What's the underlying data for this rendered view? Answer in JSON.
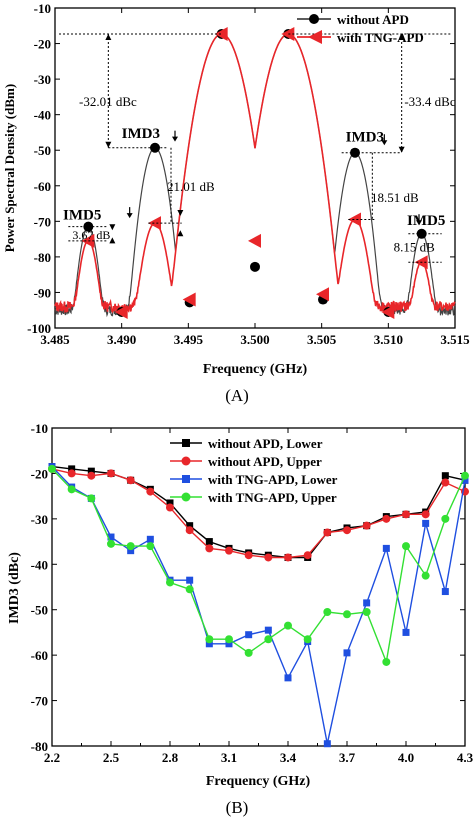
{
  "figure_a": {
    "caption": "(A)",
    "xlabel": "Frequency (GHz)",
    "ylabel": "Power Spectral Density (dBm)",
    "legend": [
      "without APD",
      "with TNG-APD"
    ],
    "annotations": {
      "imd3_left": "IMD3",
      "imd3_right": "IMD3",
      "imd5_left": "IMD5",
      "imd5_right": "IMD5",
      "dbc_left": "-32.01 dBc",
      "dbc_right": "-33.4 dBc",
      "imd3_gain_left": "21.01 dB",
      "imd3_gain_right": "18.51 dB",
      "imd5_gain_left": "3.67 dB",
      "imd5_gain_right": "8.15 dB"
    }
  },
  "figure_b": {
    "caption": "(B)",
    "xlabel": "Frequency (GHz)",
    "ylabel": "IMD3 (dBc)"
  },
  "chart_data": [
    {
      "type": "line",
      "xlabel": "Frequency (GHz)",
      "ylabel": "Power Spectral Density (dBm)",
      "xlim": [
        3.485,
        3.515
      ],
      "ylim": [
        -100,
        -10
      ],
      "x_ticks": [
        "3.485",
        "3.490",
        "3.495",
        "3.500",
        "3.505",
        "3.510",
        "3.515"
      ],
      "y_ticks": [
        "-10",
        "-20",
        "-30",
        "-40",
        "-50",
        "-60",
        "-70",
        "-80",
        "-90",
        "-100"
      ],
      "series": [
        {
          "name": "without APD",
          "color": "#444444",
          "markers": [
            [
              3.4875,
              -71.5
            ],
            [
              3.4925,
              -49.3
            ],
            [
              3.4975,
              -17.3
            ],
            [
              3.5,
              -82.8
            ],
            [
              3.5025,
              -17.3
            ],
            [
              3.5075,
              -50.7
            ],
            [
              3.5125,
              -73.5
            ],
            [
              3.49,
              -95.5
            ],
            [
              3.4951,
              -92.8
            ],
            [
              3.5051,
              -92.0
            ],
            [
              3.51,
              -95.5
            ]
          ]
        },
        {
          "name": "with TNG-APD",
          "color": "#e8262a",
          "markers": [
            [
              3.4875,
              -75.5
            ],
            [
              3.4925,
              -70.5
            ],
            [
              3.4975,
              -17.3
            ],
            [
              3.5,
              -75.5
            ],
            [
              3.5025,
              -17.3
            ],
            [
              3.5075,
              -69.5
            ],
            [
              3.5125,
              -81.5
            ],
            [
              3.49,
              -95.5
            ],
            [
              3.4951,
              -92.0
            ],
            [
              3.5051,
              -90.5
            ],
            [
              3.51,
              -95.5
            ]
          ]
        }
      ]
    },
    {
      "type": "line",
      "xlabel": "Frequency (GHz)",
      "ylabel": "IMD3 (dBc)",
      "xlim": [
        2.2,
        4.3
      ],
      "ylim": [
        -80,
        -10
      ],
      "x_ticks": [
        "2.2",
        "2.5",
        "2.8",
        "3.1",
        "3.4",
        "3.7",
        "4.0",
        "4.3"
      ],
      "y_ticks": [
        "-10",
        "-20",
        "-30",
        "-40",
        "-50",
        "-60",
        "-70",
        "-80"
      ],
      "x": [
        2.2,
        2.3,
        2.4,
        2.5,
        2.6,
        2.7,
        2.8,
        2.9,
        3.0,
        3.1,
        3.2,
        3.3,
        3.4,
        3.5,
        3.6,
        3.7,
        3.8,
        3.9,
        4.0,
        4.1,
        4.2,
        4.3
      ],
      "series": [
        {
          "name": "without APD, Lower",
          "color": "#000000",
          "marker": "square",
          "values": [
            -18.5,
            -19.0,
            -19.5,
            -20.0,
            -21.5,
            -23.5,
            -26.5,
            -31.5,
            -35.0,
            -36.5,
            -37.5,
            -38.0,
            -38.5,
            -38.5,
            -33.0,
            -32.0,
            -31.5,
            -29.5,
            -29.0,
            -28.5,
            -20.5,
            -21.5
          ]
        },
        {
          "name": "without APD, Upper",
          "color": "#e8262a",
          "marker": "circle",
          "values": [
            -19.0,
            -20.0,
            -20.5,
            -20.0,
            -21.5,
            -24.0,
            -27.5,
            -32.5,
            -36.5,
            -37.0,
            -38.0,
            -38.5,
            -38.5,
            -38.0,
            -33.0,
            -32.5,
            -31.5,
            -30.0,
            -29.0,
            -29.0,
            -22.0,
            -24.0
          ]
        },
        {
          "name": "with TNG-APD, Lower",
          "color": "#1f4fe0",
          "marker": "square",
          "values": [
            -18.5,
            -23.0,
            -25.5,
            -34.0,
            -37.0,
            -34.5,
            -43.5,
            -43.5,
            -57.5,
            -57.5,
            -55.5,
            -54.5,
            -65.0,
            -57.0,
            -79.5,
            -59.5,
            -48.5,
            -36.5,
            -55.0,
            -31.0,
            -46.0,
            -21.5
          ]
        },
        {
          "name": "with TNG-APD, Upper",
          "color": "#33e033",
          "marker": "circle",
          "values": [
            -19.0,
            -23.5,
            -25.5,
            -35.5,
            -36.0,
            -36.0,
            -44.0,
            -45.5,
            -56.5,
            -56.5,
            -59.5,
            -56.5,
            -53.5,
            -56.5,
            -50.5,
            -51.0,
            -50.5,
            -61.5,
            -36.0,
            -42.5,
            -30.0,
            -20.5
          ]
        }
      ],
      "legend_position": "top-right"
    }
  ]
}
